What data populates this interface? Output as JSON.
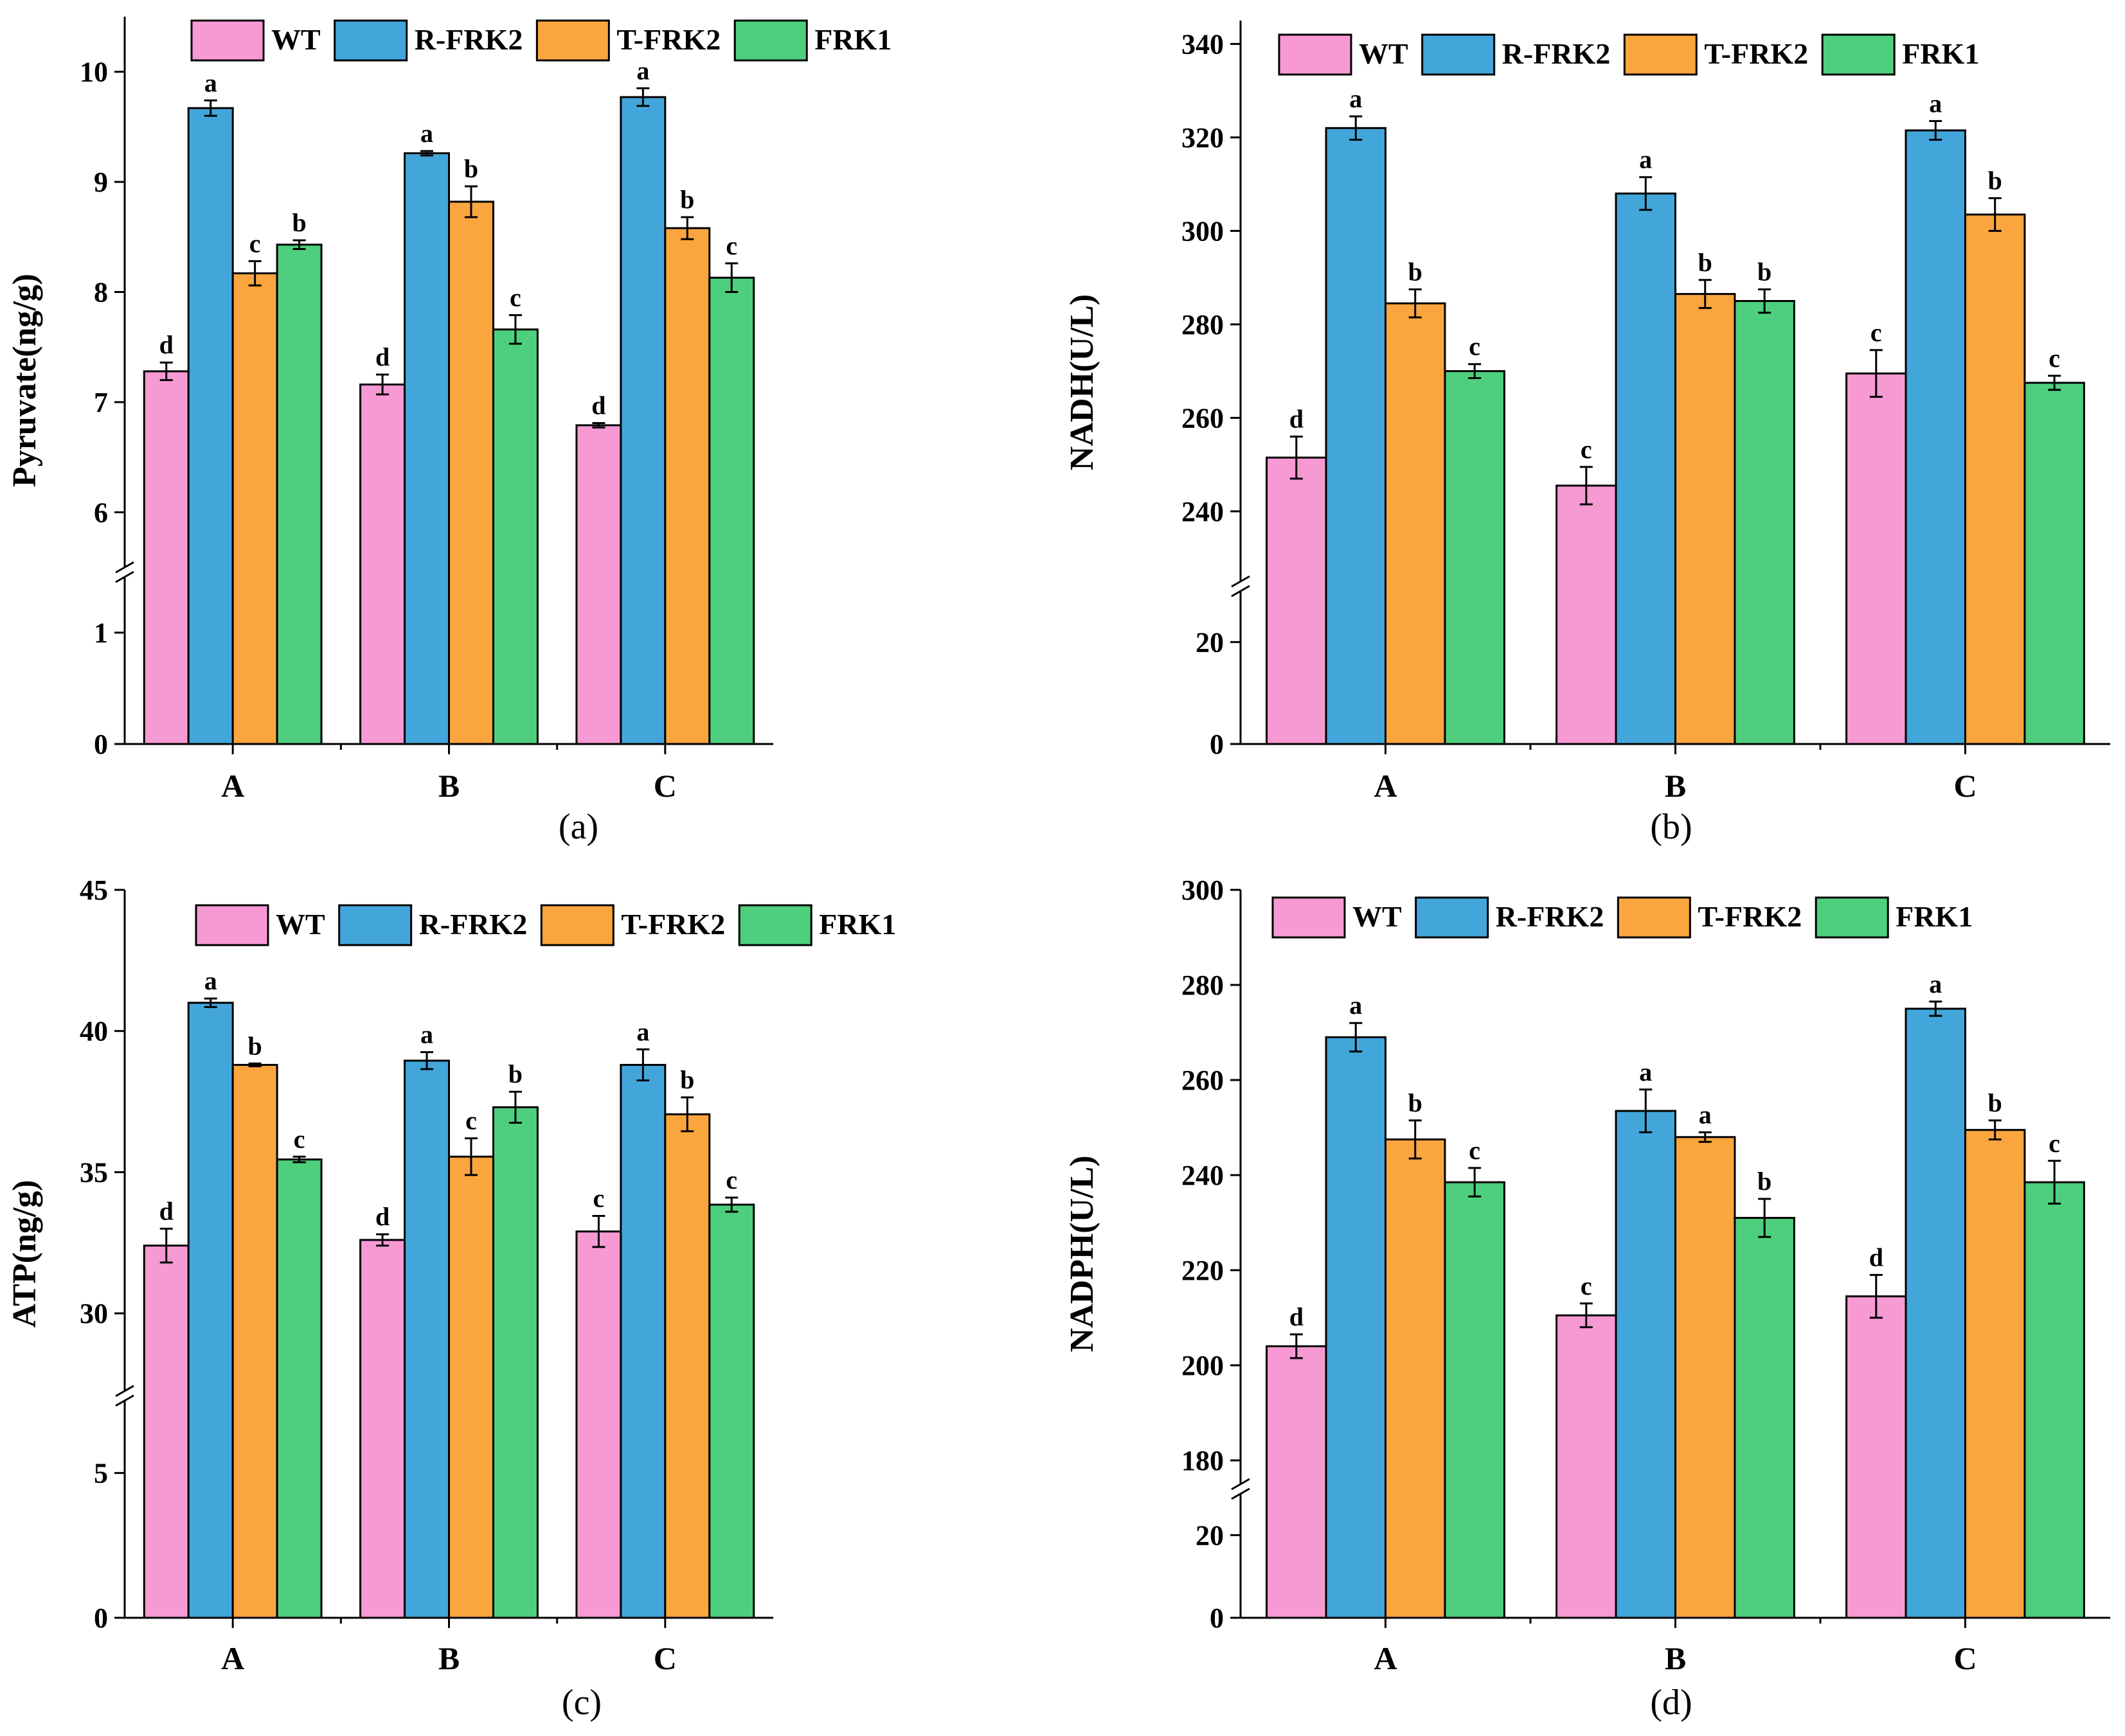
{
  "colors": {
    "WT": "#f79ad3",
    "R-FRK2": "#42a6da",
    "T-FRK2": "#fba53e",
    "FRK1": "#4ecf7d"
  },
  "chart_data": [
    {
      "type": "bar",
      "panel_caption": "(a)",
      "ylabel": "Pyruvate(ng/g)",
      "categories": [
        "A",
        "B",
        "C"
      ],
      "legend": [
        "WT",
        "R-FRK2",
        "T-FRK2",
        "FRK1"
      ],
      "broken_axis": {
        "lower_range": [
          0,
          1.5
        ],
        "upper_range": [
          5.5,
          10.5
        ]
      },
      "ticks_lower": [
        "0",
        "1"
      ],
      "ticks_upper": [
        "6",
        "7",
        "8",
        "9",
        "10"
      ],
      "series": [
        {
          "name": "WT",
          "values": [
            7.28,
            7.16,
            6.79
          ],
          "errors": [
            0.08,
            0.09,
            0.02
          ],
          "letters": [
            "d",
            "d",
            "d"
          ]
        },
        {
          "name": "R-FRK2",
          "values": [
            9.67,
            9.26,
            9.77
          ],
          "errors": [
            0.07,
            0.02,
            0.08
          ],
          "letters": [
            "a",
            "a",
            "a"
          ]
        },
        {
          "name": "T-FRK2",
          "values": [
            8.17,
            8.82,
            8.58
          ],
          "errors": [
            0.11,
            0.14,
            0.1
          ],
          "letters": [
            "c",
            "b",
            "b"
          ]
        },
        {
          "name": "FRK1",
          "values": [
            8.43,
            7.66,
            8.13
          ],
          "errors": [
            0.04,
            0.13,
            0.13
          ],
          "letters": [
            "b",
            "c",
            "c"
          ]
        }
      ]
    },
    {
      "type": "bar",
      "panel_caption": "(b)",
      "ylabel": "NADH(U/L)",
      "categories": [
        "A",
        "B",
        "C"
      ],
      "legend": [
        "WT",
        "R-FRK2",
        "T-FRK2",
        "FRK1"
      ],
      "broken_axis": {
        "lower_range": [
          0,
          30
        ],
        "upper_range": [
          225,
          345
        ]
      },
      "ticks_lower": [
        "0",
        "20"
      ],
      "ticks_upper": [
        "240",
        "260",
        "280",
        "300",
        "320",
        "340"
      ],
      "series": [
        {
          "name": "WT",
          "values": [
            251.5,
            245.5,
            269.5
          ],
          "errors": [
            4.5,
            4,
            5
          ],
          "letters": [
            "d",
            "c",
            "c"
          ]
        },
        {
          "name": "R-FRK2",
          "values": [
            322,
            308,
            321.5
          ],
          "errors": [
            2.5,
            3.5,
            2
          ],
          "letters": [
            "a",
            "a",
            "a"
          ]
        },
        {
          "name": "T-FRK2",
          "values": [
            284.5,
            286.5,
            303.5
          ],
          "errors": [
            3,
            3,
            3.5
          ],
          "letters": [
            "b",
            "b",
            "b"
          ]
        },
        {
          "name": "FRK1",
          "values": [
            270,
            285,
            267.5
          ],
          "errors": [
            1.5,
            2.5,
            1.5
          ],
          "letters": [
            "c",
            "b",
            "c"
          ]
        }
      ]
    },
    {
      "type": "bar",
      "panel_caption": "(c)",
      "ylabel": "ATP(ng/g)",
      "categories": [
        "A",
        "B",
        "C"
      ],
      "legend": [
        "WT",
        "R-FRK2",
        "T-FRK2",
        "FRK1"
      ],
      "broken_axis": {
        "lower_range": [
          0,
          7.5
        ],
        "upper_range": [
          27.25,
          45
        ]
      },
      "ticks_lower": [
        "0",
        "5"
      ],
      "ticks_upper": [
        "30",
        "35",
        "40",
        "45"
      ],
      "series": [
        {
          "name": "WT",
          "values": [
            32.4,
            32.6,
            32.9
          ],
          "errors": [
            0.6,
            0.2,
            0.55
          ],
          "letters": [
            "d",
            "d",
            "c"
          ]
        },
        {
          "name": "R-FRK2",
          "values": [
            41,
            38.95,
            38.8
          ],
          "errors": [
            0.15,
            0.3,
            0.55
          ],
          "letters": [
            "a",
            "a",
            "a"
          ]
        },
        {
          "name": "T-FRK2",
          "values": [
            38.8,
            35.55,
            37.05
          ],
          "errors": [
            0.05,
            0.65,
            0.6
          ],
          "letters": [
            "b",
            "c",
            "b"
          ]
        },
        {
          "name": "FRK1",
          "values": [
            35.45,
            37.3,
            33.85
          ],
          "errors": [
            0.1,
            0.55,
            0.25
          ],
          "letters": [
            "c",
            "b",
            "c"
          ]
        }
      ]
    },
    {
      "type": "bar",
      "panel_caption": "(d)",
      "ylabel": "NADPH(U/L)",
      "categories": [
        "A",
        "B",
        "C"
      ],
      "legend": [
        "WT",
        "R-FRK2",
        "T-FRK2",
        "FRK1"
      ],
      "broken_axis": {
        "lower_range": [
          0,
          30
        ],
        "upper_range": [
          175,
          300
        ]
      },
      "ticks_lower": [
        "0",
        "20"
      ],
      "ticks_upper": [
        "180",
        "200",
        "220",
        "240",
        "260",
        "280",
        "300"
      ],
      "series": [
        {
          "name": "WT",
          "values": [
            204,
            210.5,
            214.5
          ],
          "errors": [
            2.5,
            2.5,
            4.5
          ],
          "letters": [
            "d",
            "c",
            "d"
          ]
        },
        {
          "name": "R-FRK2",
          "values": [
            269,
            253.5,
            275
          ],
          "errors": [
            3,
            4.5,
            1.5
          ],
          "letters": [
            "a",
            "a",
            "a"
          ]
        },
        {
          "name": "T-FRK2",
          "values": [
            247.5,
            248,
            249.5
          ],
          "errors": [
            4,
            1,
            2
          ],
          "letters": [
            "b",
            "a",
            "b"
          ]
        },
        {
          "name": "FRK1",
          "values": [
            238.5,
            231,
            238.5
          ],
          "errors": [
            3,
            4,
            4.5
          ],
          "letters": [
            "c",
            "b",
            "c"
          ]
        }
      ]
    }
  ]
}
